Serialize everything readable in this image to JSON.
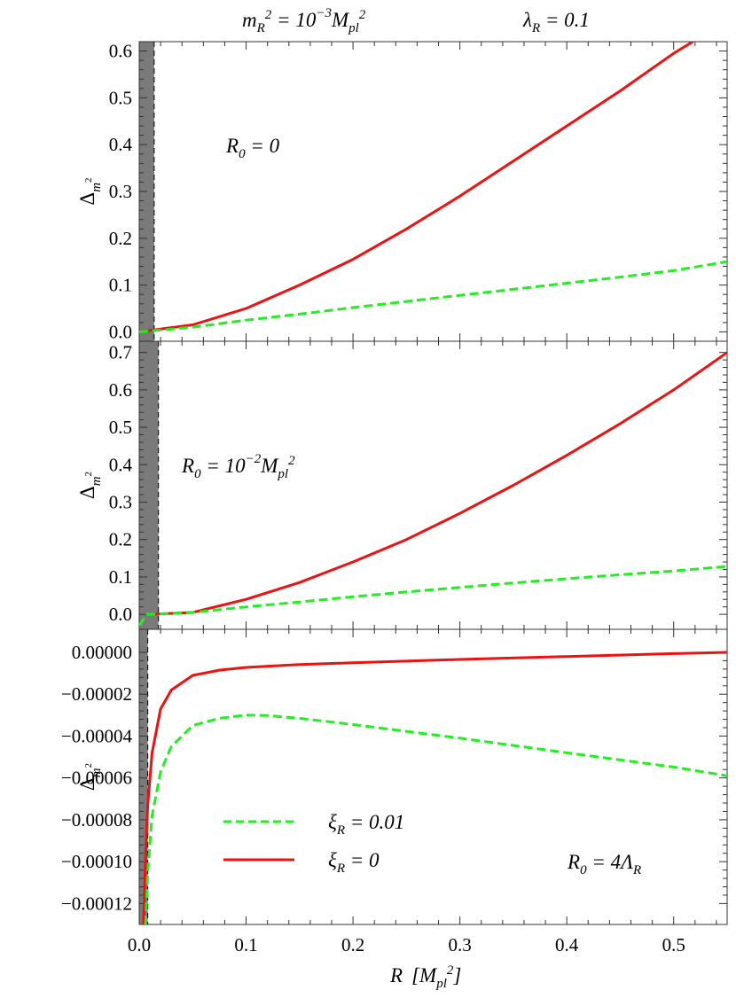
{
  "header": {
    "mass_condition": "m_R^2 = 10^-3 M_pl^2",
    "lambda_condition": "λ_R = 0.1"
  },
  "x_axis": {
    "label": "R  [M_pl^2]",
    "ticks": [
      "0.0",
      "0.1",
      "0.2",
      "0.3",
      "0.4",
      "0.5"
    ]
  },
  "legend": {
    "dashed": "ξ_R = 0.01",
    "solid": "ξ_R = 0"
  },
  "colors": {
    "solid_series": "#ee1111",
    "dashed_series": "#22ee22",
    "shaded_region": "#7a7a7a"
  },
  "chart_data": [
    {
      "type": "line",
      "panel": "top",
      "annotation": "R_0 = 0",
      "ylabel": "Δ_m²",
      "xlim": [
        0,
        0.55
      ],
      "ylim": [
        -0.02,
        0.62
      ],
      "yticks": [
        "0.0",
        "0.1",
        "0.2",
        "0.3",
        "0.4",
        "0.5",
        "0.6"
      ],
      "shaded_region": {
        "x": [
          0,
          0.014
        ]
      },
      "series": [
        {
          "name": "ξ_R = 0",
          "style": "solid",
          "x": [
            0,
            0.05,
            0.1,
            0.15,
            0.2,
            0.25,
            0.3,
            0.35,
            0.4,
            0.45,
            0.5,
            0.518
          ],
          "y": [
            0,
            0.015,
            0.05,
            0.1,
            0.155,
            0.22,
            0.29,
            0.365,
            0.44,
            0.515,
            0.595,
            0.62
          ]
        },
        {
          "name": "ξ_R = 0.01",
          "style": "dashed",
          "x": [
            0,
            0.05,
            0.1,
            0.15,
            0.2,
            0.25,
            0.3,
            0.35,
            0.4,
            0.45,
            0.5,
            0.55
          ],
          "y": [
            0,
            0.01,
            0.025,
            0.038,
            0.052,
            0.065,
            0.078,
            0.091,
            0.104,
            0.117,
            0.131,
            0.15
          ]
        }
      ]
    },
    {
      "type": "line",
      "panel": "middle",
      "annotation": "R_0 = 10^-2 M_pl^2",
      "ylabel": "Δ_m²",
      "xlim": [
        0,
        0.55
      ],
      "ylim": [
        -0.04,
        0.73
      ],
      "yticks": [
        "0.0",
        "0.1",
        "0.2",
        "0.3",
        "0.4",
        "0.5",
        "0.6",
        "0.7"
      ],
      "shaded_region": {
        "x": [
          0,
          0.018
        ]
      },
      "series": [
        {
          "name": "ξ_R = 0",
          "style": "solid",
          "x": [
            0.01,
            0.05,
            0.1,
            0.15,
            0.2,
            0.25,
            0.3,
            0.35,
            0.4,
            0.45,
            0.5,
            0.55
          ],
          "y": [
            0,
            0.005,
            0.04,
            0.085,
            0.14,
            0.2,
            0.27,
            0.345,
            0.425,
            0.51,
            0.6,
            0.7
          ]
        },
        {
          "name": "ξ_R = 0.01",
          "style": "dashed",
          "x": [
            0,
            0.007,
            0.01,
            0.05,
            0.1,
            0.15,
            0.2,
            0.25,
            0.3,
            0.35,
            0.4,
            0.45,
            0.5,
            0.55
          ],
          "y": [
            -0.03,
            0,
            0,
            0.005,
            0.02,
            0.033,
            0.047,
            0.06,
            0.072,
            0.084,
            0.095,
            0.106,
            0.116,
            0.128
          ]
        }
      ]
    },
    {
      "type": "line",
      "panel": "bottom",
      "annotation": "R_0 = 4Λ_R",
      "ylabel": "Δ_m²",
      "xlim": [
        0,
        0.55
      ],
      "ylim": [
        -0.00013,
        1.1e-05
      ],
      "yticks": [
        "0.00000",
        "−0.00002",
        "−0.00004",
        "−0.00006",
        "−0.00008",
        "−0.00010",
        "−0.00012"
      ],
      "shaded_region": {
        "x": [
          0,
          0.008
        ]
      },
      "series": [
        {
          "name": "ξ_R = 0",
          "style": "solid",
          "x": [
            0.004,
            0.006,
            0.008,
            0.012,
            0.02,
            0.03,
            0.05,
            0.075,
            0.1,
            0.15,
            0.2,
            0.3,
            0.4,
            0.5,
            0.55
          ],
          "y": [
            -0.00013,
            -9.8e-05,
            -7.3e-05,
            -4.8e-05,
            -2.7e-05,
            -1.8e-05,
            -1.1e-05,
            -8.5e-06,
            -7.2e-06,
            -5.8e-06,
            -5e-06,
            -3.4e-06,
            -2e-06,
            -6e-07,
            0
          ]
        },
        {
          "name": "ξ_R = 0.01",
          "style": "dashed",
          "x": [
            0.006,
            0.008,
            0.012,
            0.02,
            0.03,
            0.05,
            0.075,
            0.1,
            0.12,
            0.15,
            0.2,
            0.3,
            0.4,
            0.5,
            0.55
          ],
          "y": [
            -0.00013,
            -0.000105,
            -7.8e-05,
            -5.7e-05,
            -4.5e-05,
            -3.5e-05,
            -3.15e-05,
            -3e-05,
            -3.02e-05,
            -3.15e-05,
            -3.45e-05,
            -4.1e-05,
            -4.8e-05,
            -5.48e-05,
            -5.9e-05
          ]
        }
      ]
    }
  ]
}
